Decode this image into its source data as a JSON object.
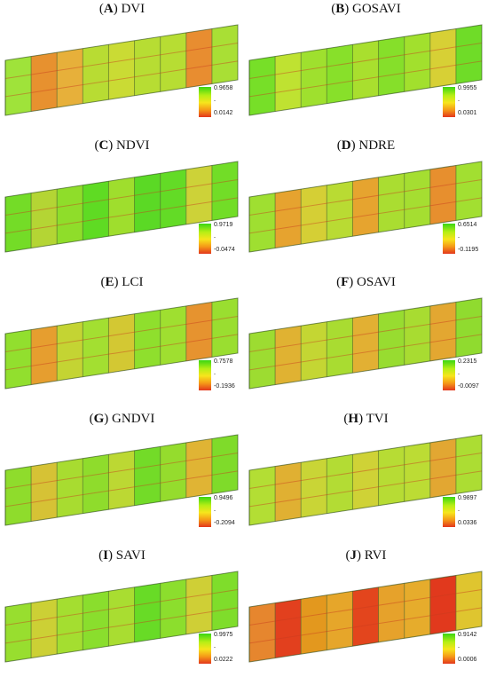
{
  "panels": [
    {
      "letter": "A",
      "name": "DVI",
      "max": "0.9658",
      "min": "0.0142",
      "plots": [
        "#9fe33a",
        "#e7912f",
        "#e7b03a",
        "#b8dc33",
        "#cadb34",
        "#b7dd33",
        "#b7dd33",
        "#e88d30",
        "#a9df35"
      ]
    },
    {
      "letter": "B",
      "name": "GOSAVI",
      "max": "0.9955",
      "min": "0.0301",
      "plots": [
        "#77df28",
        "#bfe231",
        "#9fe02e",
        "#88e02a",
        "#a9df2e",
        "#86df2a",
        "#a2e02d",
        "#d7d035",
        "#6fdc28"
      ]
    },
    {
      "letter": "C",
      "name": "NDVI",
      "max": "0.9719",
      "min": "-0.0474",
      "plots": [
        "#74dc27",
        "#b4d534",
        "#8fdd2a",
        "#5fdb23",
        "#9fde2d",
        "#5bd925",
        "#63db26",
        "#cdd238",
        "#72dd27"
      ]
    },
    {
      "letter": "D",
      "name": "NDRE",
      "max": "0.6514",
      "min": "-0.1195",
      "plots": [
        "#9fdf31",
        "#e6a32f",
        "#d5cf35",
        "#b9db33",
        "#e6a42f",
        "#aadd31",
        "#a5de31",
        "#e78f2e",
        "#a2df31"
      ]
    },
    {
      "letter": "E",
      "name": "LCI",
      "max": "0.7578",
      "min": "-0.1936",
      "plots": [
        "#92df2e",
        "#e69e2f",
        "#c4d433",
        "#a3df31",
        "#d3c833",
        "#8fdf2d",
        "#9fdf30",
        "#e6932f",
        "#9ade30"
      ]
    },
    {
      "letter": "F",
      "name": "OSAVI",
      "max": "0.2315",
      "min": "-0.0097",
      "plots": [
        "#9ddc31",
        "#e0b232",
        "#c4d633",
        "#a9dc31",
        "#e2b033",
        "#98dc30",
        "#a8dc31",
        "#e3a731",
        "#90db2f"
      ]
    },
    {
      "letter": "G",
      "name": "GNDVI",
      "max": "0.9496",
      "min": "-0.2094",
      "plots": [
        "#8fdc2c",
        "#d6c235",
        "#a8dc30",
        "#8fdc2c",
        "#bcd833",
        "#73db28",
        "#95dc2d",
        "#e0b434",
        "#7fdb2a"
      ]
    },
    {
      "letter": "H",
      "name": "TVI",
      "max": "0.9897",
      "min": "0.0336",
      "plots": [
        "#b3de34",
        "#e0b032",
        "#c9d536",
        "#b3dc34",
        "#cfd236",
        "#b7dc34",
        "#bcdc34",
        "#e2a732",
        "#acdd33"
      ]
    },
    {
      "letter": "I",
      "name": "SAVI",
      "max": "0.9975",
      "min": "0.0222",
      "plots": [
        "#98de2f",
        "#ccd035",
        "#a4de30",
        "#8ade2d",
        "#a9dd31",
        "#68db26",
        "#8cde2d",
        "#cfcf36",
        "#7fdd2b"
      ]
    },
    {
      "letter": "J",
      "name": "RVI",
      "max": "0.9142",
      "min": "0.0006",
      "plots": [
        "#e6862e",
        "#e2401e",
        "#e3981e",
        "#e6a62a",
        "#e3451d",
        "#e6a22b",
        "#e6ac2c",
        "#e1391d",
        "#dfc52f"
      ]
    }
  ],
  "colors": {
    "high": "#39d612",
    "low": "#e3371c"
  }
}
